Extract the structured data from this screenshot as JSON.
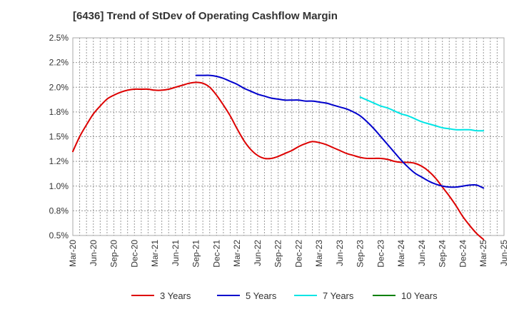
{
  "chart_data": {
    "type": "line",
    "title": "[6436]  Trend of StDev of Operating Cashflow Margin",
    "xlabel": "",
    "ylabel": "",
    "y_ticks": [
      "0.5%",
      "0.8%",
      "1.0%",
      "1.2%",
      "1.5%",
      "1.8%",
      "2.0%",
      "2.2%",
      "2.5%"
    ],
    "x_ticks": [
      "Mar-20",
      "Jun-20",
      "Sep-20",
      "Dec-20",
      "Mar-21",
      "Jun-21",
      "Sep-21",
      "Dec-21",
      "Mar-22",
      "Jun-22",
      "Sep-22",
      "Dec-22",
      "Mar-23",
      "Jun-23",
      "Sep-23",
      "Dec-23",
      "Mar-24",
      "Jun-24",
      "Sep-24",
      "Dec-24",
      "Mar-25",
      "Jun-25"
    ],
    "ylim": [
      0.5,
      2.5
    ],
    "grid": true,
    "legend_position": "bottom",
    "series": [
      {
        "name": "3 Years",
        "color": "#dd0000",
        "points": [
          [
            "2020-03",
            1.35
          ],
          [
            "2020-04",
            1.5
          ],
          [
            "2020-05",
            1.62
          ],
          [
            "2020-06",
            1.73
          ],
          [
            "2020-07",
            1.81
          ],
          [
            "2020-08",
            1.88
          ],
          [
            "2020-09",
            1.92
          ],
          [
            "2020-10",
            1.95
          ],
          [
            "2020-11",
            1.97
          ],
          [
            "2020-12",
            1.98
          ],
          [
            "2021-01",
            1.98
          ],
          [
            "2021-02",
            1.98
          ],
          [
            "2021-03",
            1.97
          ],
          [
            "2021-04",
            1.97
          ],
          [
            "2021-05",
            1.98
          ],
          [
            "2021-06",
            2.0
          ],
          [
            "2021-07",
            2.02
          ],
          [
            "2021-08",
            2.04
          ],
          [
            "2021-09",
            2.05
          ],
          [
            "2021-10",
            2.04
          ],
          [
            "2021-11",
            2.0
          ],
          [
            "2021-12",
            1.92
          ],
          [
            "2022-01",
            1.82
          ],
          [
            "2022-02",
            1.71
          ],
          [
            "2022-03",
            1.58
          ],
          [
            "2022-04",
            1.46
          ],
          [
            "2022-05",
            1.37
          ],
          [
            "2022-06",
            1.31
          ],
          [
            "2022-07",
            1.28
          ],
          [
            "2022-08",
            1.28
          ],
          [
            "2022-09",
            1.3
          ],
          [
            "2022-10",
            1.33
          ],
          [
            "2022-11",
            1.36
          ],
          [
            "2022-12",
            1.4
          ],
          [
            "2023-01",
            1.43
          ],
          [
            "2023-02",
            1.45
          ],
          [
            "2023-03",
            1.44
          ],
          [
            "2023-04",
            1.42
          ],
          [
            "2023-05",
            1.39
          ],
          [
            "2023-06",
            1.36
          ],
          [
            "2023-07",
            1.33
          ],
          [
            "2023-08",
            1.31
          ],
          [
            "2023-09",
            1.29
          ],
          [
            "2023-10",
            1.28
          ],
          [
            "2023-11",
            1.28
          ],
          [
            "2023-12",
            1.28
          ],
          [
            "2024-01",
            1.27
          ],
          [
            "2024-02",
            1.25
          ],
          [
            "2024-03",
            1.24
          ],
          [
            "2024-04",
            1.24
          ],
          [
            "2024-05",
            1.23
          ],
          [
            "2024-06",
            1.2
          ],
          [
            "2024-07",
            1.15
          ],
          [
            "2024-08",
            1.08
          ],
          [
            "2024-09",
            0.99
          ],
          [
            "2024-10",
            0.9
          ],
          [
            "2024-11",
            0.8
          ],
          [
            "2024-12",
            0.69
          ],
          [
            "2025-01",
            0.6
          ],
          [
            "2025-02",
            0.52
          ],
          [
            "2025-03",
            0.46
          ]
        ]
      },
      {
        "name": "5 Years",
        "color": "#0000cc",
        "points": [
          [
            "2021-09",
            2.12
          ],
          [
            "2021-10",
            2.12
          ],
          [
            "2021-11",
            2.12
          ],
          [
            "2021-12",
            2.11
          ],
          [
            "2022-01",
            2.09
          ],
          [
            "2022-02",
            2.06
          ],
          [
            "2022-03",
            2.03
          ],
          [
            "2022-04",
            1.99
          ],
          [
            "2022-05",
            1.96
          ],
          [
            "2022-06",
            1.93
          ],
          [
            "2022-07",
            1.91
          ],
          [
            "2022-08",
            1.89
          ],
          [
            "2022-09",
            1.88
          ],
          [
            "2022-10",
            1.87
          ],
          [
            "2022-11",
            1.87
          ],
          [
            "2022-12",
            1.87
          ],
          [
            "2023-01",
            1.86
          ],
          [
            "2023-02",
            1.86
          ],
          [
            "2023-03",
            1.85
          ],
          [
            "2023-04",
            1.84
          ],
          [
            "2023-05",
            1.82
          ],
          [
            "2023-06",
            1.8
          ],
          [
            "2023-07",
            1.78
          ],
          [
            "2023-08",
            1.75
          ],
          [
            "2023-09",
            1.71
          ],
          [
            "2023-10",
            1.65
          ],
          [
            "2023-11",
            1.58
          ],
          [
            "2023-12",
            1.5
          ],
          [
            "2024-01",
            1.42
          ],
          [
            "2024-02",
            1.34
          ],
          [
            "2024-03",
            1.26
          ],
          [
            "2024-04",
            1.19
          ],
          [
            "2024-05",
            1.13
          ],
          [
            "2024-06",
            1.09
          ],
          [
            "2024-07",
            1.05
          ],
          [
            "2024-08",
            1.02
          ],
          [
            "2024-09",
            1.0
          ],
          [
            "2024-10",
            0.99
          ],
          [
            "2024-11",
            0.99
          ],
          [
            "2024-12",
            1.0
          ],
          [
            "2025-01",
            1.01
          ],
          [
            "2025-02",
            1.01
          ],
          [
            "2025-03",
            0.98
          ]
        ]
      },
      {
        "name": "7 Years",
        "color": "#00e5e5",
        "points": [
          [
            "2023-09",
            1.9
          ],
          [
            "2023-10",
            1.87
          ],
          [
            "2023-11",
            1.84
          ],
          [
            "2023-12",
            1.81
          ],
          [
            "2024-01",
            1.79
          ],
          [
            "2024-02",
            1.76
          ],
          [
            "2024-03",
            1.73
          ],
          [
            "2024-04",
            1.71
          ],
          [
            "2024-05",
            1.68
          ],
          [
            "2024-06",
            1.65
          ],
          [
            "2024-07",
            1.63
          ],
          [
            "2024-08",
            1.61
          ],
          [
            "2024-09",
            1.59
          ],
          [
            "2024-10",
            1.58
          ],
          [
            "2024-11",
            1.57
          ],
          [
            "2024-12",
            1.57
          ],
          [
            "2025-01",
            1.57
          ],
          [
            "2025-02",
            1.56
          ],
          [
            "2025-03",
            1.56
          ]
        ]
      },
      {
        "name": "10 Years",
        "color": "#008000",
        "points": []
      }
    ]
  }
}
